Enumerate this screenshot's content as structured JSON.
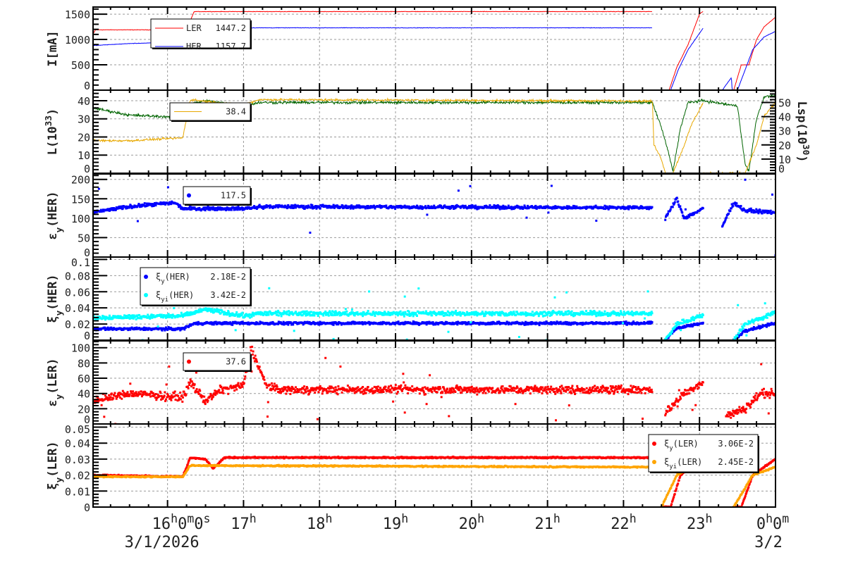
{
  "chart_data": [
    {
      "type": "line",
      "ylabel": {
        "main": "I[mA]",
        "sub": "",
        "rest": ""
      },
      "ylim": [
        0,
        1640
      ],
      "yticks": [
        "0",
        "500",
        "1000",
        "1500"
      ],
      "ytick_values": [
        0,
        500,
        1000,
        1500
      ],
      "grid": true,
      "legend_placement": "top-left",
      "series": [
        {
          "name": "LER",
          "value": "1447.2",
          "color": "#ff0000",
          "style": "line",
          "segments": [
            [
              [
                15.02,
                1100
              ],
              [
                15.05,
                1190
              ],
              [
                16.25,
                1190
              ],
              [
                16.35,
                1550
              ],
              [
                22.38,
                1550
              ]
            ],
            [
              [
                22.38,
                0
              ],
              [
                22.6,
                0
              ],
              [
                22.7,
                450
              ],
              [
                22.85,
                900
              ],
              [
                23.0,
                1500
              ],
              [
                23.05,
                1560
              ]
            ],
            [
              [
                23.05,
                0
              ],
              [
                23.45,
                0
              ],
              [
                23.55,
                500
              ],
              [
                23.65,
                500
              ],
              [
                23.75,
                1000
              ],
              [
                23.85,
                1250
              ],
              [
                24.0,
                1440
              ]
            ]
          ]
        },
        {
          "name": "HER",
          "value": "1157.7",
          "color": "#0000ff",
          "style": "line",
          "segments": [
            [
              [
                15.02,
                880
              ],
              [
                15.5,
                920
              ],
              [
                16.25,
                950
              ],
              [
                16.35,
                1220
              ],
              [
                16.55,
                1230
              ],
              [
                16.63,
                930
              ],
              [
                16.7,
                1230
              ],
              [
                22.38,
                1230
              ]
            ],
            [
              [
                22.38,
                0
              ],
              [
                22.62,
                0
              ],
              [
                22.72,
                400
              ],
              [
                22.85,
                800
              ],
              [
                23.05,
                1230
              ]
            ],
            [
              [
                23.05,
                0
              ],
              [
                23.3,
                0
              ],
              [
                23.42,
                250
              ],
              [
                23.43,
                0
              ],
              [
                23.5,
                0
              ],
              [
                23.7,
                800
              ],
              [
                23.85,
                1050
              ],
              [
                24.0,
                1160
              ]
            ]
          ]
        }
      ]
    },
    {
      "type": "line",
      "ylabel": {
        "main": "L(10",
        "sup": "33",
        "rest": ")"
      },
      "ylabel_right": {
        "main": "Lsp(10",
        "sup": "30",
        "rest": ")"
      },
      "ylim": [
        0,
        45.8
      ],
      "ylim_right": [
        0,
        58.7
      ],
      "yticks": [
        "0",
        "10",
        "20",
        "30",
        "40"
      ],
      "ytick_values": [
        0,
        10,
        20,
        30,
        40
      ],
      "yticks_right": [
        "0",
        "10",
        "20",
        "30",
        "40",
        "50"
      ],
      "ytick_values_right": [
        0,
        10,
        20,
        30,
        40,
        50
      ],
      "grid": true,
      "legend_placement": "top-left",
      "series": [
        {
          "name": "",
          "color": "#006400",
          "style": "line",
          "axis": "left",
          "segments": [
            [
              [
                15.02,
                36
              ],
              [
                15.5,
                32
              ],
              [
                16.1,
                31
              ],
              [
                16.2,
                29
              ],
              [
                16.3,
                38
              ],
              [
                16.5,
                40
              ],
              [
                17.0,
                37
              ],
              [
                17.2,
                39
              ],
              [
                22.38,
                39
              ],
              [
                22.5,
                25
              ],
              [
                22.6,
                10
              ],
              [
                22.65,
                1
              ],
              [
                22.75,
                25
              ],
              [
                22.85,
                39
              ],
              [
                23.05,
                40
              ],
              [
                23.5,
                37
              ],
              [
                23.6,
                5
              ],
              [
                23.65,
                1
              ],
              [
                23.75,
                30
              ],
              [
                23.85,
                42
              ],
              [
                24.0,
                43
              ]
            ]
          ]
        },
        {
          "name": "",
          "value": "38.4",
          "color": "#e8a800",
          "style": "line",
          "axis": "right",
          "legend": true,
          "segments": [
            [
              [
                15.02,
                23
              ],
              [
                15.5,
                23
              ],
              [
                16.2,
                25
              ],
              [
                16.3,
                52
              ],
              [
                17.0,
                48
              ],
              [
                17.2,
                52
              ],
              [
                22.38,
                51
              ],
              [
                22.4,
                20
              ],
              [
                22.5,
                10
              ],
              [
                22.55,
                0
              ],
              [
                22.65,
                0
              ],
              [
                22.8,
                20
              ],
              [
                22.9,
                35
              ],
              [
                23.05,
                50
              ]
            ],
            [
              [
                23.05,
                0
              ],
              [
                23.6,
                0
              ],
              [
                23.75,
                20
              ],
              [
                23.85,
                40
              ],
              [
                24.0,
                50
              ]
            ]
          ]
        }
      ]
    },
    {
      "type": "scatter",
      "ylabel": {
        "main": "ε",
        "sub": "y",
        "rest": "(HER)"
      },
      "ylim": [
        0,
        214
      ],
      "yticks": [
        "0",
        "50",
        "100",
        "150",
        "200"
      ],
      "ytick_values": [
        0,
        50,
        100,
        150,
        200
      ],
      "grid": true,
      "legend_placement": "top-left",
      "series": [
        {
          "name": "",
          "value": "117.5",
          "color": "#0000ff",
          "style": "points",
          "segments": [
            [
              [
                15.02,
                115
              ],
              [
                15.5,
                130
              ],
              [
                16.1,
                140
              ],
              [
                16.2,
                125
              ],
              [
                17.0,
                125
              ],
              [
                17.3,
                130
              ],
              [
                22.38,
                127
              ]
            ],
            [
              [
                22.55,
                100
              ],
              [
                22.7,
                150
              ],
              [
                22.8,
                100
              ],
              [
                23.05,
                125
              ]
            ],
            [
              [
                23.3,
                80
              ],
              [
                23.45,
                140
              ],
              [
                23.6,
                120
              ],
              [
                24.0,
                115
              ]
            ]
          ]
        }
      ]
    },
    {
      "type": "scatter",
      "ylabel": {
        "main": "ξ",
        "sub": "y",
        "rest": "(HER)"
      },
      "ylim": [
        0,
        0.103
      ],
      "yticks": [
        "0",
        "0.02",
        "0.04",
        "0.06",
        "0.08",
        "0.1"
      ],
      "ytick_values": [
        0,
        0.02,
        0.04,
        0.06,
        0.08,
        0.1
      ],
      "grid": true,
      "legend_placement": "top-left",
      "series": [
        {
          "name": "ξy(HER)",
          "name_main": "ξ",
          "name_sub": "y",
          "name_rest": "(HER)",
          "value": "2.18E-2",
          "color": "#0000ff",
          "style": "points",
          "segments": [
            [
              [
                15.02,
                0.014
              ],
              [
                16.2,
                0.014
              ],
              [
                16.35,
                0.021
              ],
              [
                22.38,
                0.021
              ]
            ],
            [
              [
                22.55,
                0.0
              ],
              [
                22.7,
                0.015
              ],
              [
                23.05,
                0.021
              ]
            ],
            [
              [
                23.45,
                0.0
              ],
              [
                23.6,
                0.012
              ],
              [
                24.0,
                0.021
              ]
            ]
          ]
        },
        {
          "name": "ξyi(HER)",
          "name_main": "ξ",
          "name_sub": "yi",
          "name_rest": "(HER)",
          "value": "3.42E-2",
          "color": "#00ffff",
          "style": "points",
          "segments": [
            [
              [
                15.02,
                0.028
              ],
              [
                16.2,
                0.03
              ],
              [
                16.5,
                0.038
              ],
              [
                17.0,
                0.03
              ],
              [
                17.2,
                0.033
              ],
              [
                22.38,
                0.033
              ]
            ],
            [
              [
                22.55,
                0.0
              ],
              [
                22.7,
                0.02
              ],
              [
                23.05,
                0.031
              ]
            ],
            [
              [
                23.45,
                0.0
              ],
              [
                23.6,
                0.02
              ],
              [
                24.0,
                0.034
              ]
            ]
          ]
        }
      ]
    },
    {
      "type": "scatter",
      "ylabel": {
        "main": "ε",
        "sub": "y",
        "rest": "(LER)"
      },
      "ylim": [
        0,
        109
      ],
      "yticks": [
        "0",
        "20",
        "40",
        "60",
        "80",
        "100"
      ],
      "ytick_values": [
        0,
        20,
        40,
        60,
        80,
        100
      ],
      "grid": true,
      "legend_placement": "top-left",
      "series": [
        {
          "name": "",
          "value": "37.6",
          "color": "#ff0000",
          "style": "points",
          "segments": [
            [
              [
                15.02,
                30
              ],
              [
                15.5,
                40
              ],
              [
                16.2,
                35
              ],
              [
                16.3,
                55
              ],
              [
                16.5,
                30
              ],
              [
                16.7,
                45
              ],
              [
                17.0,
                50
              ],
              [
                17.1,
                100
              ],
              [
                17.3,
                50
              ],
              [
                17.5,
                45
              ],
              [
                22.38,
                45
              ]
            ],
            [
              [
                22.55,
                15
              ],
              [
                22.8,
                40
              ],
              [
                23.05,
                55
              ]
            ],
            [
              [
                23.35,
                10
              ],
              [
                23.6,
                20
              ],
              [
                23.8,
                40
              ],
              [
                24.0,
                40
              ]
            ]
          ]
        }
      ]
    },
    {
      "type": "scatter",
      "ylabel": {
        "main": "ξ",
        "sub": "y",
        "rest": "(LER)"
      },
      "ylim": [
        0,
        0.052
      ],
      "yticks": [
        "0",
        "0.01",
        "0.02",
        "0.03",
        "0.04",
        "0.05"
      ],
      "ytick_values": [
        0,
        0.01,
        0.02,
        0.03,
        0.04,
        0.05
      ],
      "grid": true,
      "legend_placement": "top-right",
      "series": [
        {
          "name": "ξy(LER)",
          "name_main": "ξ",
          "name_sub": "y",
          "name_rest": "(LER)",
          "value": "3.06E-2",
          "color": "#ff0000",
          "style": "points",
          "segments": [
            [
              [
                15.02,
                0.02
              ],
              [
                16.2,
                0.019
              ],
              [
                16.3,
                0.031
              ],
              [
                16.5,
                0.03
              ],
              [
                16.6,
                0.024
              ],
              [
                16.75,
                0.031
              ],
              [
                22.38,
                0.031
              ]
            ],
            [
              [
                22.5,
                0.0
              ],
              [
                22.62,
                0.0
              ],
              [
                22.75,
                0.02
              ],
              [
                22.95,
                0.028
              ]
            ],
            [
              [
                23.45,
                0.0
              ],
              [
                23.55,
                0.0
              ],
              [
                23.7,
                0.02
              ],
              [
                24.0,
                0.03
              ]
            ]
          ]
        },
        {
          "name": "ξyi(LER)",
          "name_main": "ξ",
          "name_sub": "yi",
          "name_rest": "(LER)",
          "value": "2.45E-2",
          "color": "#ffa500",
          "style": "points",
          "segments": [
            [
              [
                15.02,
                0.019
              ],
              [
                16.2,
                0.019
              ],
              [
                16.3,
                0.026
              ],
              [
                22.38,
                0.025
              ]
            ],
            [
              [
                22.5,
                0.0
              ],
              [
                22.7,
                0.02
              ],
              [
                22.95,
                0.026
              ]
            ],
            [
              [
                23.45,
                0.0
              ],
              [
                23.7,
                0.02
              ],
              [
                24.0,
                0.025
              ]
            ]
          ]
        }
      ]
    }
  ],
  "x_axis": {
    "xlim_hours": [
      15.02,
      24.0
    ],
    "ticks": [
      {
        "hour": 16,
        "parts": [
          [
            "16",
            "h"
          ],
          [
            "0",
            "m"
          ],
          [
            "0",
            "s"
          ]
        ]
      },
      {
        "hour": 17,
        "parts": [
          [
            "17",
            "h"
          ]
        ]
      },
      {
        "hour": 18,
        "parts": [
          [
            "18",
            "h"
          ]
        ]
      },
      {
        "hour": 19,
        "parts": [
          [
            "19",
            "h"
          ]
        ]
      },
      {
        "hour": 20,
        "parts": [
          [
            "20",
            "h"
          ]
        ]
      },
      {
        "hour": 21,
        "parts": [
          [
            "21",
            "h"
          ]
        ]
      },
      {
        "hour": 22,
        "parts": [
          [
            "22",
            "h"
          ]
        ]
      },
      {
        "hour": 23,
        "parts": [
          [
            "23",
            "h"
          ]
        ]
      },
      {
        "hour": 24,
        "parts": [
          [
            "0",
            "h"
          ],
          [
            "0",
            "m"
          ]
        ]
      }
    ],
    "dates": [
      {
        "hour": 16,
        "label": "3/1/2026"
      },
      {
        "hour": 24,
        "label": "3/2"
      }
    ]
  }
}
